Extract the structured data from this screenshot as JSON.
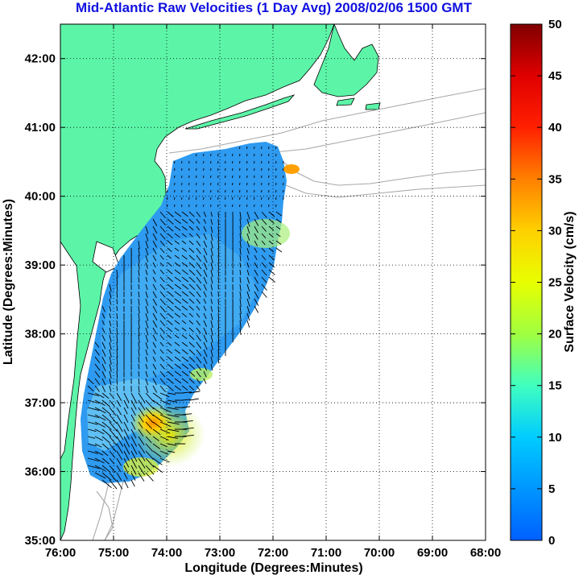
{
  "title": "Mid-Atlantic Raw Velocities (1 Day Avg) 2008/02/06 1500 GMT",
  "xlabel": "Longitude (Degrees:Minutes)",
  "ylabel": "Latitude (Degrees:Minutes)",
  "colorbar_label": "Surface Velocity (cm/s)",
  "x_ticks": [
    "76:00",
    "75:00",
    "74:00",
    "73:00",
    "72:00",
    "71:00",
    "70:00",
    "69:00",
    "68:00"
  ],
  "y_ticks": [
    "42:00",
    "41:00",
    "40:00",
    "39:00",
    "38:00",
    "37:00",
    "36:00",
    "35:00"
  ],
  "colorbar_ticks": [
    "50",
    "45",
    "40",
    "35",
    "30",
    "25",
    "20",
    "15",
    "10",
    "5",
    "0"
  ],
  "colors": {
    "land": "#5cf5a8",
    "title": "#1010e0",
    "ocean": "#ffffff",
    "bathymetry": "#a8a8a8"
  },
  "map": {
    "lon_range": [
      -76,
      -68
    ],
    "lat_range": [
      35,
      42.5
    ],
    "colorbar_range": [
      0,
      50
    ],
    "grid": "dotted"
  }
}
